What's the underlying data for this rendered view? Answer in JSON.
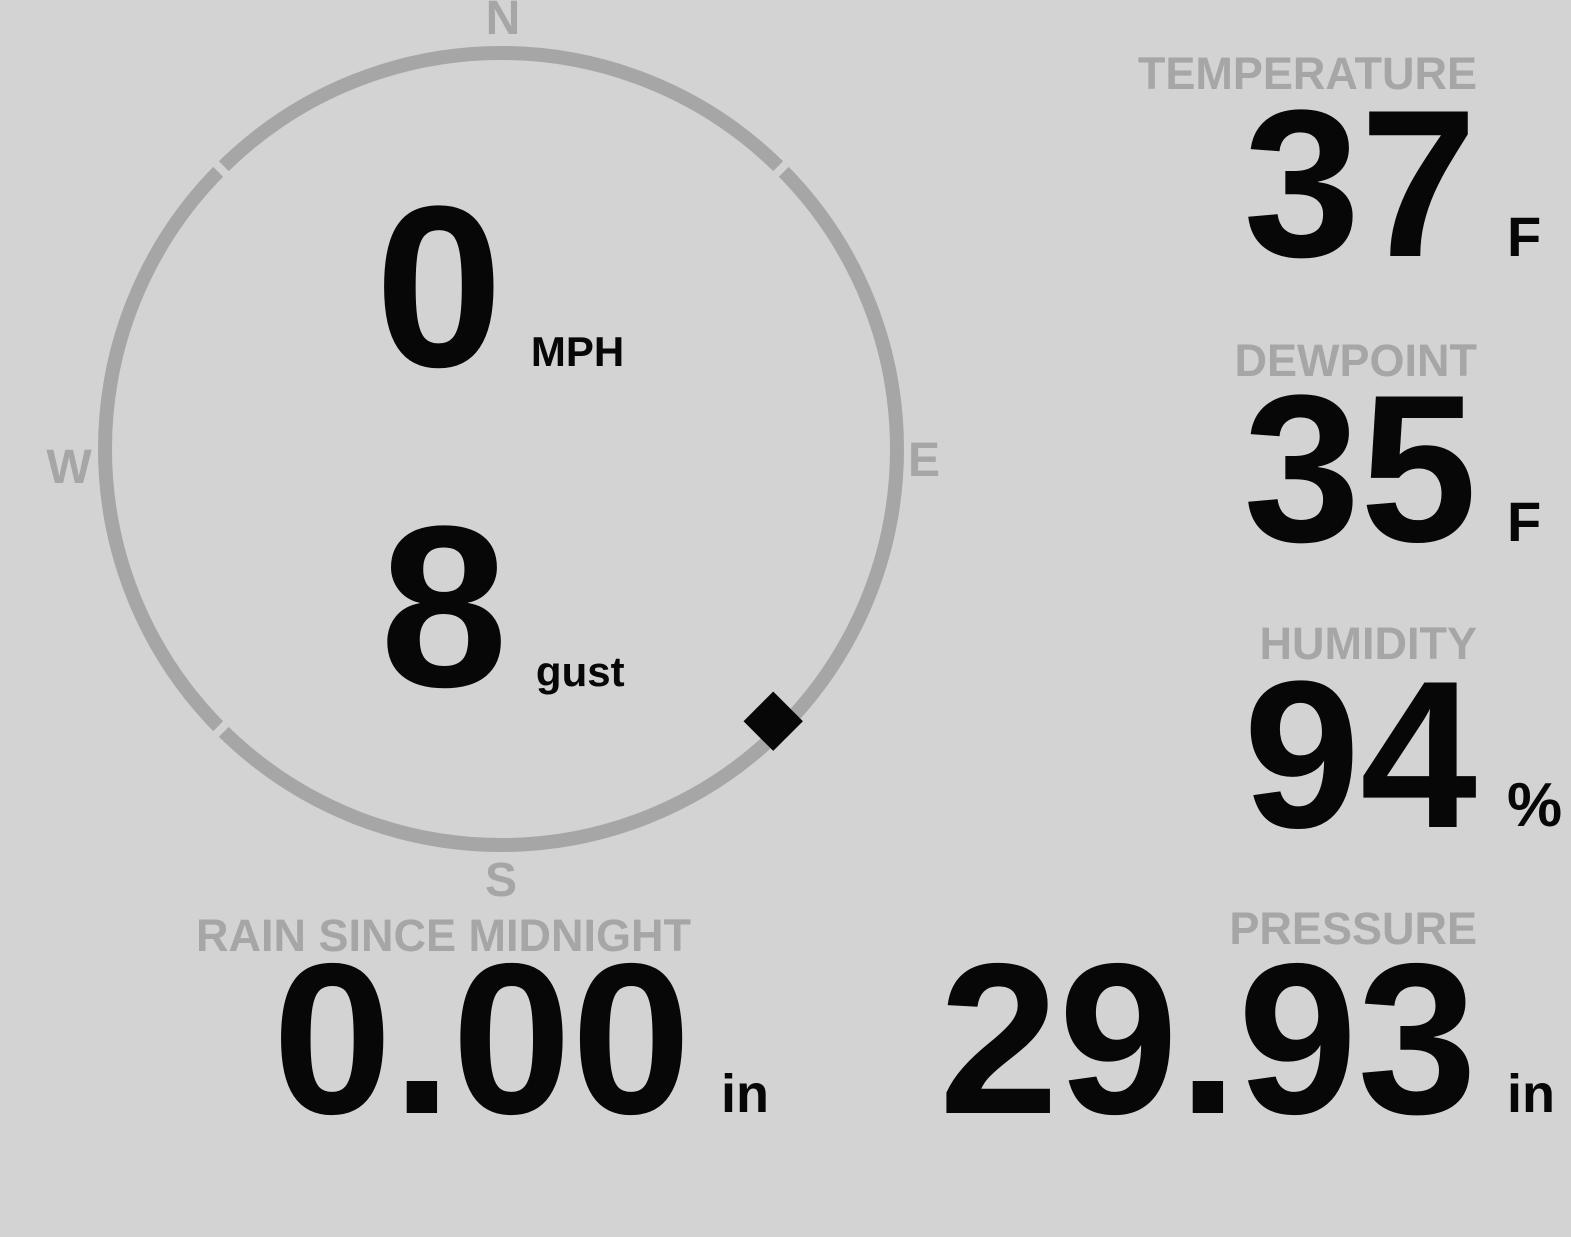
{
  "colors": {
    "background": "#d3d3d3",
    "muted_gray": "#a6a6a6",
    "ink_black": "#070707"
  },
  "compass": {
    "cardinals": {
      "north": "N",
      "east": "E",
      "south": "S",
      "west": "W"
    },
    "wind_speed": {
      "value": "0",
      "unit": "MPH"
    },
    "wind_gust": {
      "value": "8",
      "unit": "gust"
    },
    "wind_direction": {
      "bearing_deg": 135
    }
  },
  "stats": {
    "temperature": {
      "label": "TEMPERATURE",
      "value": "37",
      "unit": "F"
    },
    "dewpoint": {
      "label": "DEWPOINT",
      "value": "35",
      "unit": "F"
    },
    "humidity": {
      "label": "HUMIDITY",
      "value": "94",
      "unit": "%"
    },
    "rain": {
      "label": "RAIN SINCE MIDNIGHT",
      "value": "0.00",
      "unit": "in"
    },
    "pressure": {
      "label": "PRESSURE",
      "value": "29.93",
      "unit": "in"
    }
  }
}
